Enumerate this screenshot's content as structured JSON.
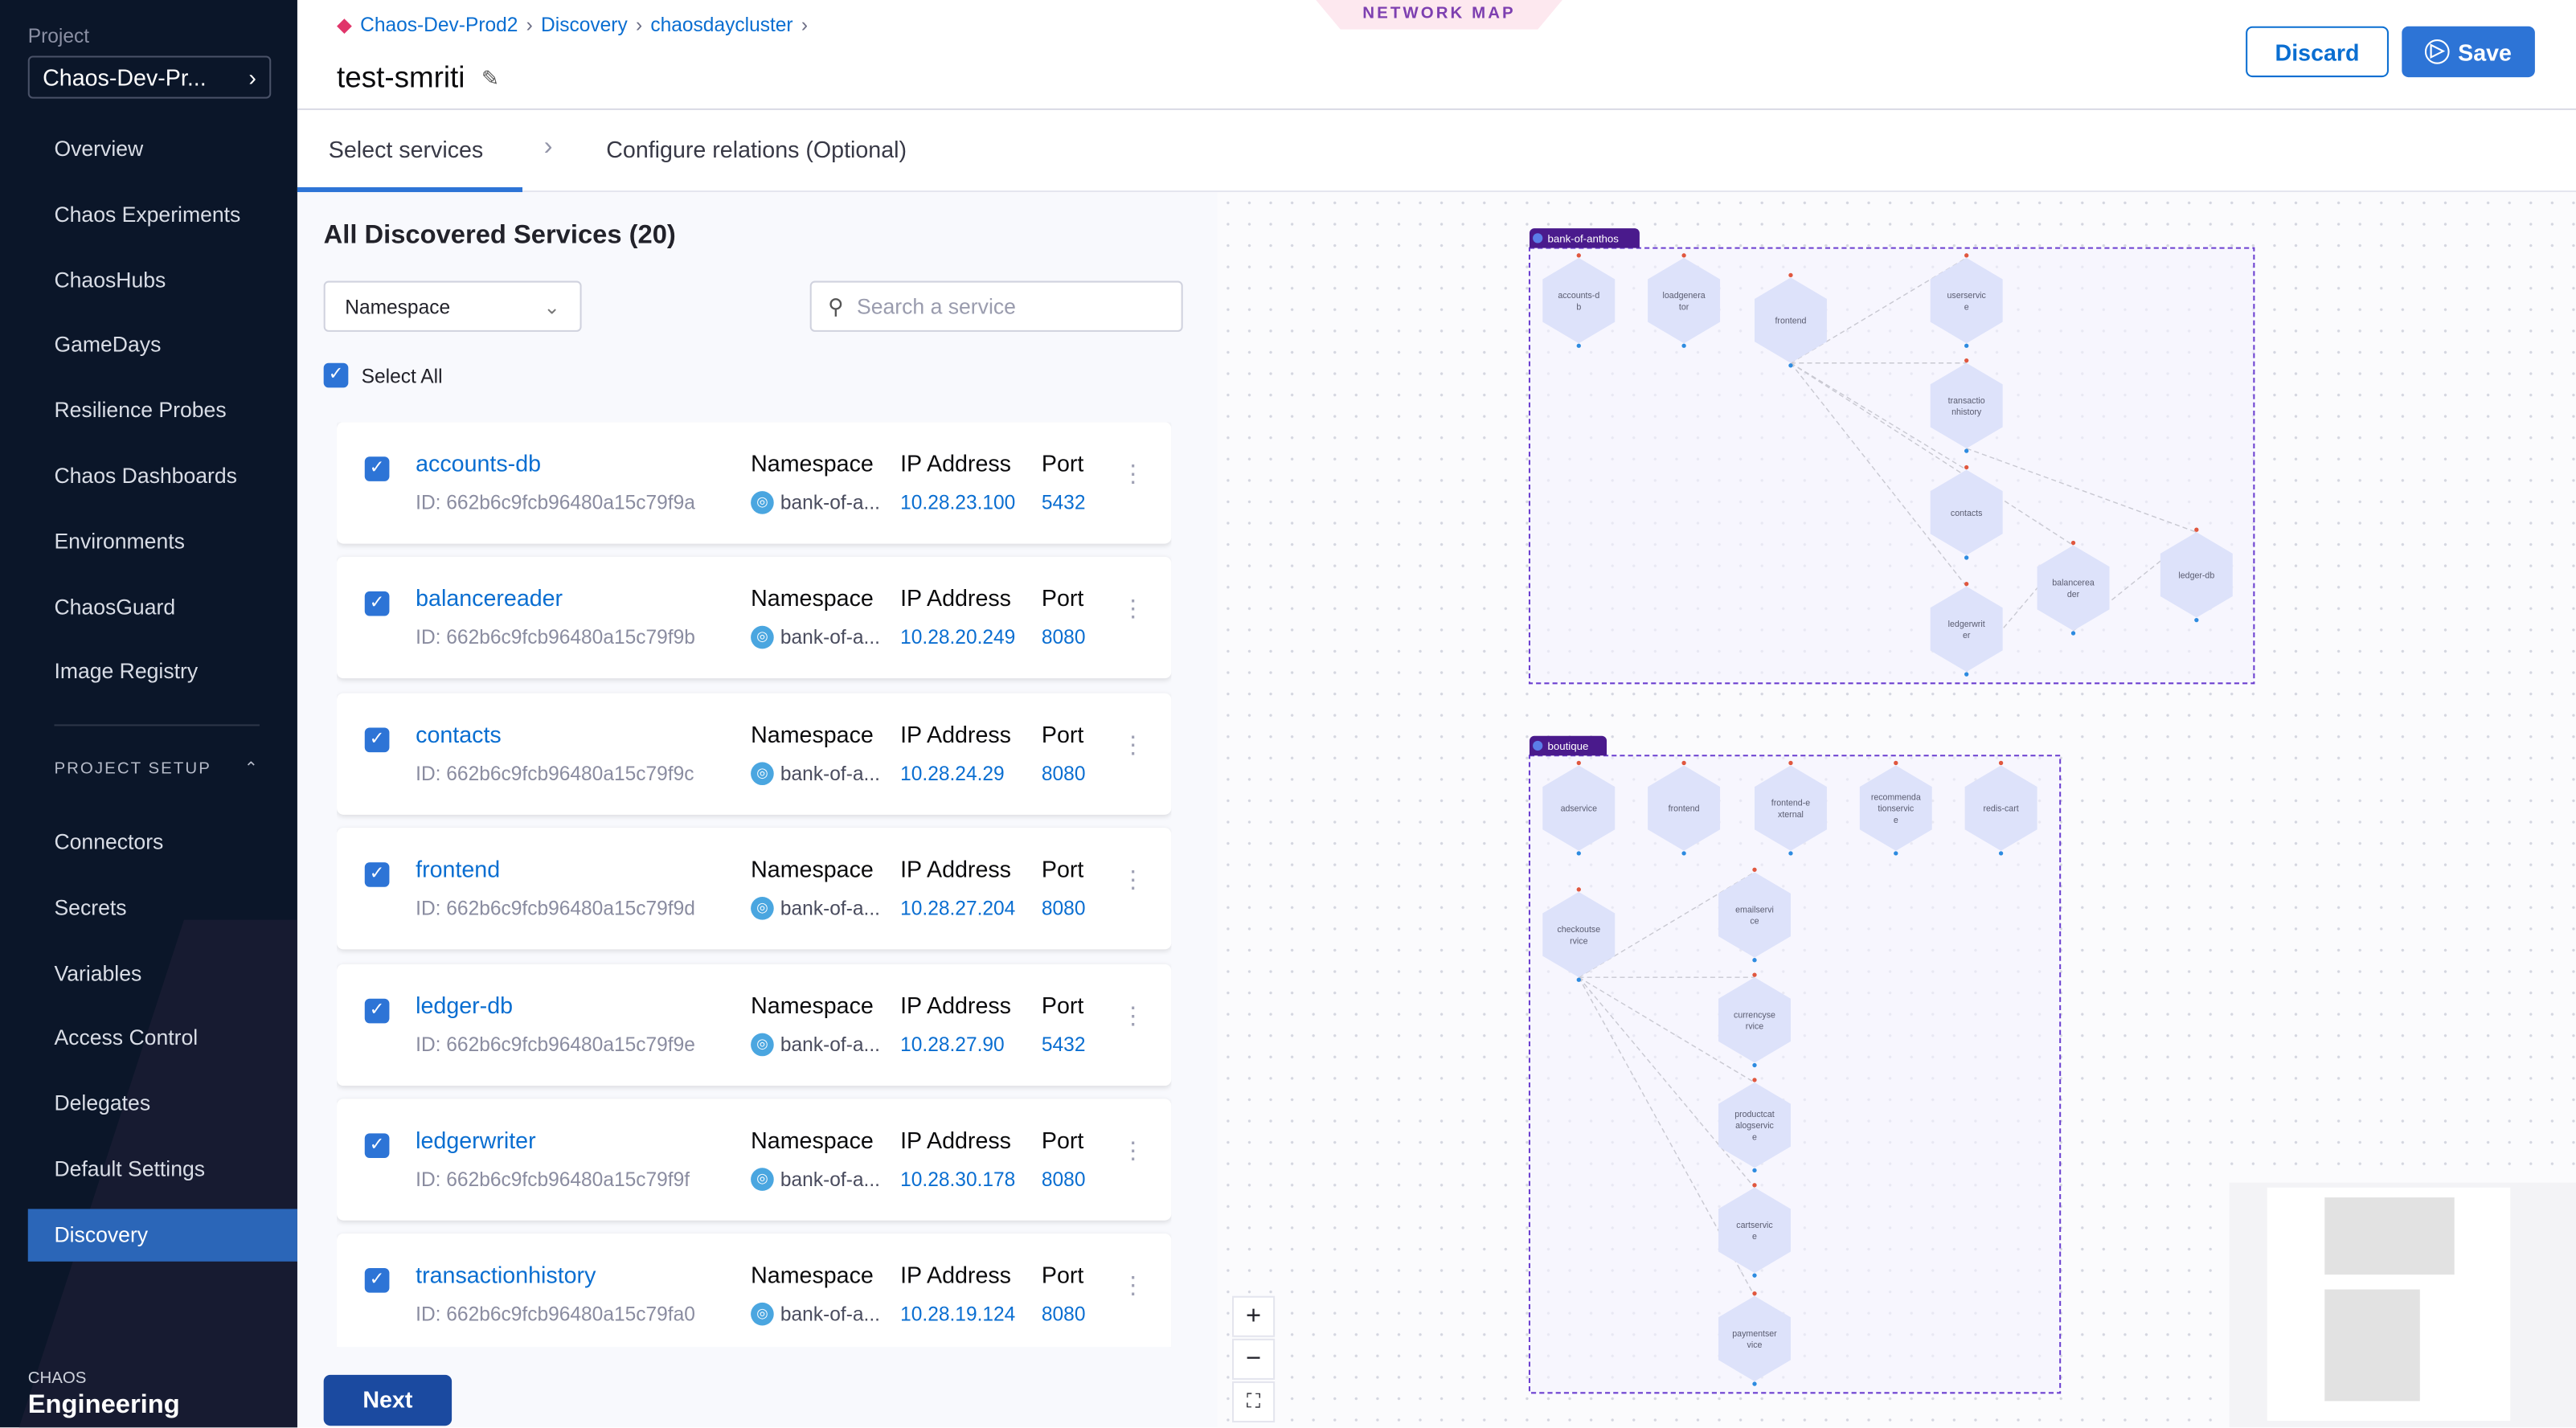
{
  "sidebar": {
    "project_label": "Project",
    "project_name": "Chaos-Dev-Pr...",
    "items": [
      "Overview",
      "Chaos Experiments",
      "ChaosHubs",
      "GameDays",
      "Resilience Probes",
      "Chaos Dashboards",
      "Environments",
      "ChaosGuard",
      "Image Registry"
    ],
    "section": "PROJECT SETUP",
    "setup_items": [
      "Connectors",
      "Secrets",
      "Variables",
      "Access Control",
      "Delegates",
      "Default Settings",
      "Discovery"
    ],
    "active": "Discovery",
    "brand_small": "CHAOS",
    "brand_large": "Engineering"
  },
  "header": {
    "breadcrumb": [
      "Chaos-Dev-Prod2",
      "Discovery",
      "chaosdaycluster"
    ],
    "title": "test-smriti",
    "network_map_tab": "NETWORK MAP",
    "discard": "Discard",
    "save": "Save"
  },
  "tabs": {
    "step1": "Select services",
    "step2": "Configure relations (Optional)"
  },
  "main": {
    "heading": "All Discovered Services (20)",
    "namespace_select": "Namespace",
    "search_placeholder": "Search a service",
    "select_all": "Select All",
    "col_namespace": "Namespace",
    "col_ip": "IP Address",
    "col_port": "Port",
    "next": "Next",
    "services": [
      {
        "name": "accounts-db",
        "id": "ID: 662b6c9fcb96480a15c79f9a",
        "namespace": "bank-of-a...",
        "ip": "10.28.23.100",
        "port": "5432",
        "checked": true
      },
      {
        "name": "balancereader",
        "id": "ID: 662b6c9fcb96480a15c79f9b",
        "namespace": "bank-of-a...",
        "ip": "10.28.20.249",
        "port": "8080",
        "checked": true
      },
      {
        "name": "contacts",
        "id": "ID: 662b6c9fcb96480a15c79f9c",
        "namespace": "bank-of-a...",
        "ip": "10.28.24.29",
        "port": "8080",
        "checked": true
      },
      {
        "name": "frontend",
        "id": "ID: 662b6c9fcb96480a15c79f9d",
        "namespace": "bank-of-a...",
        "ip": "10.28.27.204",
        "port": "8080",
        "checked": true
      },
      {
        "name": "ledger-db",
        "id": "ID: 662b6c9fcb96480a15c79f9e",
        "namespace": "bank-of-a...",
        "ip": "10.28.27.90",
        "port": "5432",
        "checked": true
      },
      {
        "name": "ledgerwriter",
        "id": "ID: 662b6c9fcb96480a15c79f9f",
        "namespace": "bank-of-a...",
        "ip": "10.28.30.178",
        "port": "8080",
        "checked": true
      },
      {
        "name": "transactionhistory",
        "id": "ID: 662b6c9fcb96480a15c79fa0",
        "namespace": "bank-of-a...",
        "ip": "10.28.19.124",
        "port": "8080",
        "checked": true
      }
    ]
  },
  "network_map": {
    "groups": [
      {
        "name": "bank-of-anthos",
        "nodes": [
          "accounts-db",
          "loadgenerator",
          "frontend",
          "userservice",
          "transactionhistory",
          "contacts",
          "balancereader",
          "ledger-db",
          "ledgerwriter"
        ],
        "edges": [
          [
            "frontend",
            "userservice"
          ],
          [
            "frontend",
            "transactionhistory"
          ],
          [
            "frontend",
            "contacts"
          ],
          [
            "frontend",
            "ledgerwriter"
          ],
          [
            "frontend",
            "balancereader"
          ],
          [
            "transactionhistory",
            "ledger-db"
          ],
          [
            "ledgerwriter",
            "balancereader"
          ],
          [
            "balancereader",
            "ledger-db"
          ]
        ]
      },
      {
        "name": "boutique",
        "nodes": [
          "adservice",
          "frontend",
          "frontend-external",
          "recommendationservice",
          "redis-cart",
          "checkoutservice",
          "emailservice",
          "currencyservice",
          "productcatalogservice",
          "cartservice",
          "paymentservice"
        ],
        "edges": [
          [
            "checkoutservice",
            "emailservice"
          ],
          [
            "checkoutservice",
            "currencyservice"
          ],
          [
            "checkoutservice",
            "productcatalogservice"
          ],
          [
            "checkoutservice",
            "cartservice"
          ],
          [
            "checkoutservice",
            "paymentservice"
          ]
        ]
      }
    ],
    "zoom_in": "+",
    "zoom_out": "−",
    "fit": "⛶"
  },
  "colors": {
    "accent": "#2d74d6",
    "sidebar": "#0b1629",
    "group_border": "#6b3fd0",
    "group_tab": "#4a1a8c",
    "node": "#dde2fa"
  }
}
